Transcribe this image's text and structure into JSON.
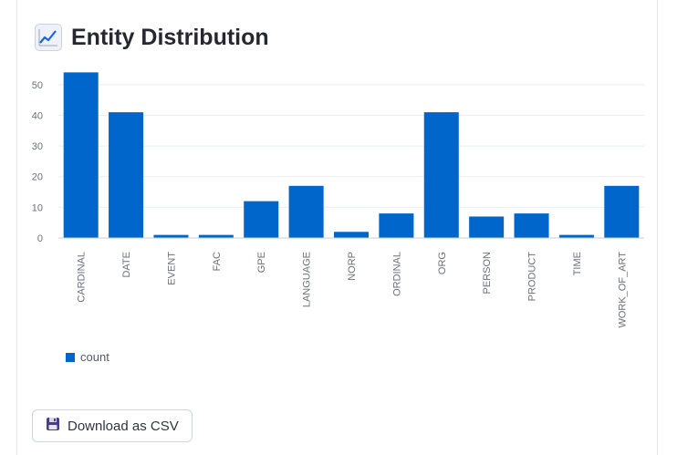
{
  "header": {
    "title": "Entity Distribution",
    "icon": "chart-increasing-icon"
  },
  "chart_data": {
    "type": "bar",
    "categories": [
      "CARDINAL",
      "DATE",
      "EVENT",
      "FAC",
      "GPE",
      "LANGUAGE",
      "NORP",
      "ORDINAL",
      "ORG",
      "PERSON",
      "PRODUCT",
      "TIME",
      "WORK_OF_ART"
    ],
    "series": [
      {
        "name": "count",
        "values": [
          54,
          41,
          1,
          1,
          12,
          17,
          2,
          8,
          41,
          7,
          8,
          1,
          17
        ]
      }
    ],
    "yticks": [
      0,
      10,
      20,
      30,
      40,
      50
    ],
    "ylim": [
      0,
      55
    ],
    "xlabel": "",
    "ylabel": "",
    "grid": true,
    "legend": "bottom-left",
    "color": "#0066cc"
  },
  "legend": {
    "label": "count"
  },
  "download": {
    "label": "Download as CSV",
    "icon": "floppy-disk-icon"
  }
}
